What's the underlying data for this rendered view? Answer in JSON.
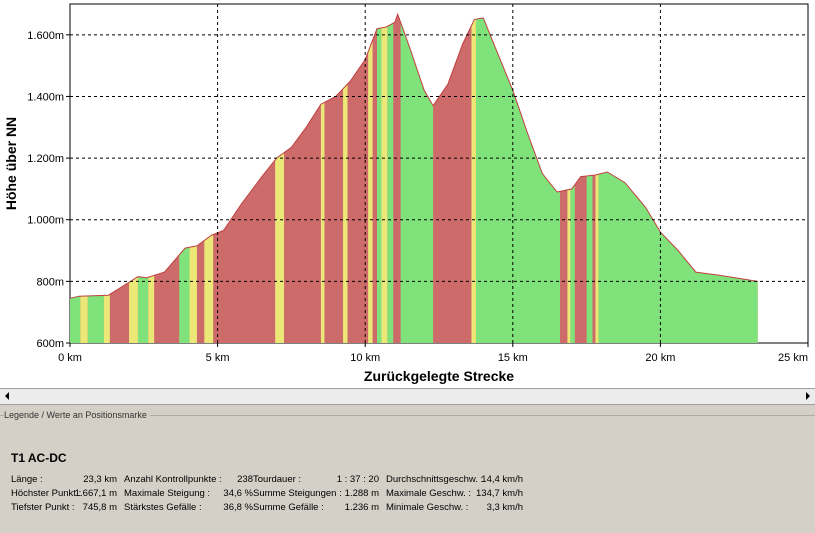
{
  "chart_data": {
    "type": "area",
    "title": "",
    "xlabel": "Zurückgelegte Strecke",
    "ylabel": "Höhe über NN",
    "xlim": [
      0,
      25
    ],
    "ylim": [
      600,
      1700
    ],
    "x_ticks": [
      {
        "value": 0,
        "label": "0 km"
      },
      {
        "value": 5,
        "label": "5 km"
      },
      {
        "value": 10,
        "label": "10 km"
      },
      {
        "value": 15,
        "label": "15 km"
      },
      {
        "value": 20,
        "label": "20 km"
      },
      {
        "value": 25,
        "label": "25 km"
      }
    ],
    "y_ticks": [
      {
        "value": 600,
        "label": "600m"
      },
      {
        "value": 800,
        "label": "800m"
      },
      {
        "value": 1000,
        "label": "1.000m"
      },
      {
        "value": 1200,
        "label": "1.200m"
      },
      {
        "value": 1400,
        "label": "1.400m"
      },
      {
        "value": 1600,
        "label": "1.600m"
      }
    ],
    "grid": true,
    "colors": {
      "climb": "#cd6b6b",
      "descent": "#80e27a",
      "flat": "#ece878",
      "outline": "#c04040"
    },
    "profile": [
      {
        "x": 0.0,
        "y": 745
      },
      {
        "x": 0.3,
        "y": 752
      },
      {
        "x": 1.3,
        "y": 755
      },
      {
        "x": 1.8,
        "y": 785
      },
      {
        "x": 2.3,
        "y": 815
      },
      {
        "x": 2.6,
        "y": 812
      },
      {
        "x": 3.2,
        "y": 830
      },
      {
        "x": 3.9,
        "y": 908
      },
      {
        "x": 4.3,
        "y": 915
      },
      {
        "x": 4.8,
        "y": 950
      },
      {
        "x": 5.2,
        "y": 965
      },
      {
        "x": 5.8,
        "y": 1050
      },
      {
        "x": 6.5,
        "y": 1140
      },
      {
        "x": 7.0,
        "y": 1200
      },
      {
        "x": 7.5,
        "y": 1235
      },
      {
        "x": 8.0,
        "y": 1300
      },
      {
        "x": 8.5,
        "y": 1375
      },
      {
        "x": 9.0,
        "y": 1400
      },
      {
        "x": 9.5,
        "y": 1450
      },
      {
        "x": 10.0,
        "y": 1520
      },
      {
        "x": 10.4,
        "y": 1620
      },
      {
        "x": 10.7,
        "y": 1625
      },
      {
        "x": 11.0,
        "y": 1640
      },
      {
        "x": 11.1,
        "y": 1667
      },
      {
        "x": 11.5,
        "y": 1560
      },
      {
        "x": 12.0,
        "y": 1420
      },
      {
        "x": 12.3,
        "y": 1370
      },
      {
        "x": 12.8,
        "y": 1440
      },
      {
        "x": 13.3,
        "y": 1570
      },
      {
        "x": 13.7,
        "y": 1650
      },
      {
        "x": 14.0,
        "y": 1655
      },
      {
        "x": 14.4,
        "y": 1560
      },
      {
        "x": 15.0,
        "y": 1420
      },
      {
        "x": 15.5,
        "y": 1280
      },
      {
        "x": 16.0,
        "y": 1150
      },
      {
        "x": 16.5,
        "y": 1090
      },
      {
        "x": 17.0,
        "y": 1100
      },
      {
        "x": 17.3,
        "y": 1140
      },
      {
        "x": 17.8,
        "y": 1145
      },
      {
        "x": 18.2,
        "y": 1155
      },
      {
        "x": 18.8,
        "y": 1120
      },
      {
        "x": 19.5,
        "y": 1040
      },
      {
        "x": 20.0,
        "y": 960
      },
      {
        "x": 20.6,
        "y": 900
      },
      {
        "x": 21.2,
        "y": 830
      },
      {
        "x": 22.0,
        "y": 820
      },
      {
        "x": 23.3,
        "y": 800
      }
    ],
    "flat_bands": [
      {
        "from": 0.35,
        "to": 0.6
      },
      {
        "from": 1.15,
        "to": 1.35
      },
      {
        "from": 2.0,
        "to": 2.3
      },
      {
        "from": 2.65,
        "to": 2.85
      },
      {
        "from": 4.05,
        "to": 4.3
      },
      {
        "from": 4.55,
        "to": 4.85
      },
      {
        "from": 6.95,
        "to": 7.25
      },
      {
        "from": 8.5,
        "to": 8.62
      },
      {
        "from": 9.25,
        "to": 9.4
      },
      {
        "from": 10.1,
        "to": 10.25
      },
      {
        "from": 10.55,
        "to": 10.75
      },
      {
        "from": 13.6,
        "to": 13.75
      },
      {
        "from": 16.85,
        "to": 16.95
      },
      {
        "from": 17.8,
        "to": 17.9
      }
    ],
    "descent_bands": [
      {
        "from": 0.0,
        "to": 0.35
      },
      {
        "from": 0.6,
        "to": 1.15
      },
      {
        "from": 2.3,
        "to": 2.65
      },
      {
        "from": 3.7,
        "to": 4.05
      },
      {
        "from": 10.4,
        "to": 10.55
      },
      {
        "from": 10.75,
        "to": 10.95
      },
      {
        "from": 11.2,
        "to": 12.3
      },
      {
        "from": 13.75,
        "to": 16.6
      },
      {
        "from": 16.95,
        "to": 17.1
      },
      {
        "from": 17.5,
        "to": 17.7
      },
      {
        "from": 17.9,
        "to": 23.3
      }
    ]
  },
  "legend_header": "Legende / Werte an Positionsmarke",
  "track_name": "T1 AC-DC",
  "stats": [
    [
      {
        "label": "Länge :",
        "value": "23,3 km"
      },
      {
        "label": "Anzahl Kontrollpunkte :",
        "value": "238"
      },
      {
        "label": "Tourdauer :",
        "value": "1 : 37 : 20"
      },
      {
        "label": "Durchschnittsgeschw. :",
        "value": "14,4 km/h"
      }
    ],
    [
      {
        "label": "Höchster Punkt :",
        "value": "1.667,1 m"
      },
      {
        "label": "Maximale Steigung :",
        "value": "34,6 %"
      },
      {
        "label": "Summe Steigungen :",
        "value": "1.288 m"
      },
      {
        "label": "Maximale Geschw. :",
        "value": "134,7 km/h"
      }
    ],
    [
      {
        "label": "Tiefster Punkt :",
        "value": "745,8 m"
      },
      {
        "label": "Stärkstes Gefälle :",
        "value": "36,8 %"
      },
      {
        "label": "Summe Gefälle :",
        "value": "1.236 m"
      },
      {
        "label": "Minimale Geschw. :",
        "value": "3,3 km/h"
      }
    ]
  ]
}
